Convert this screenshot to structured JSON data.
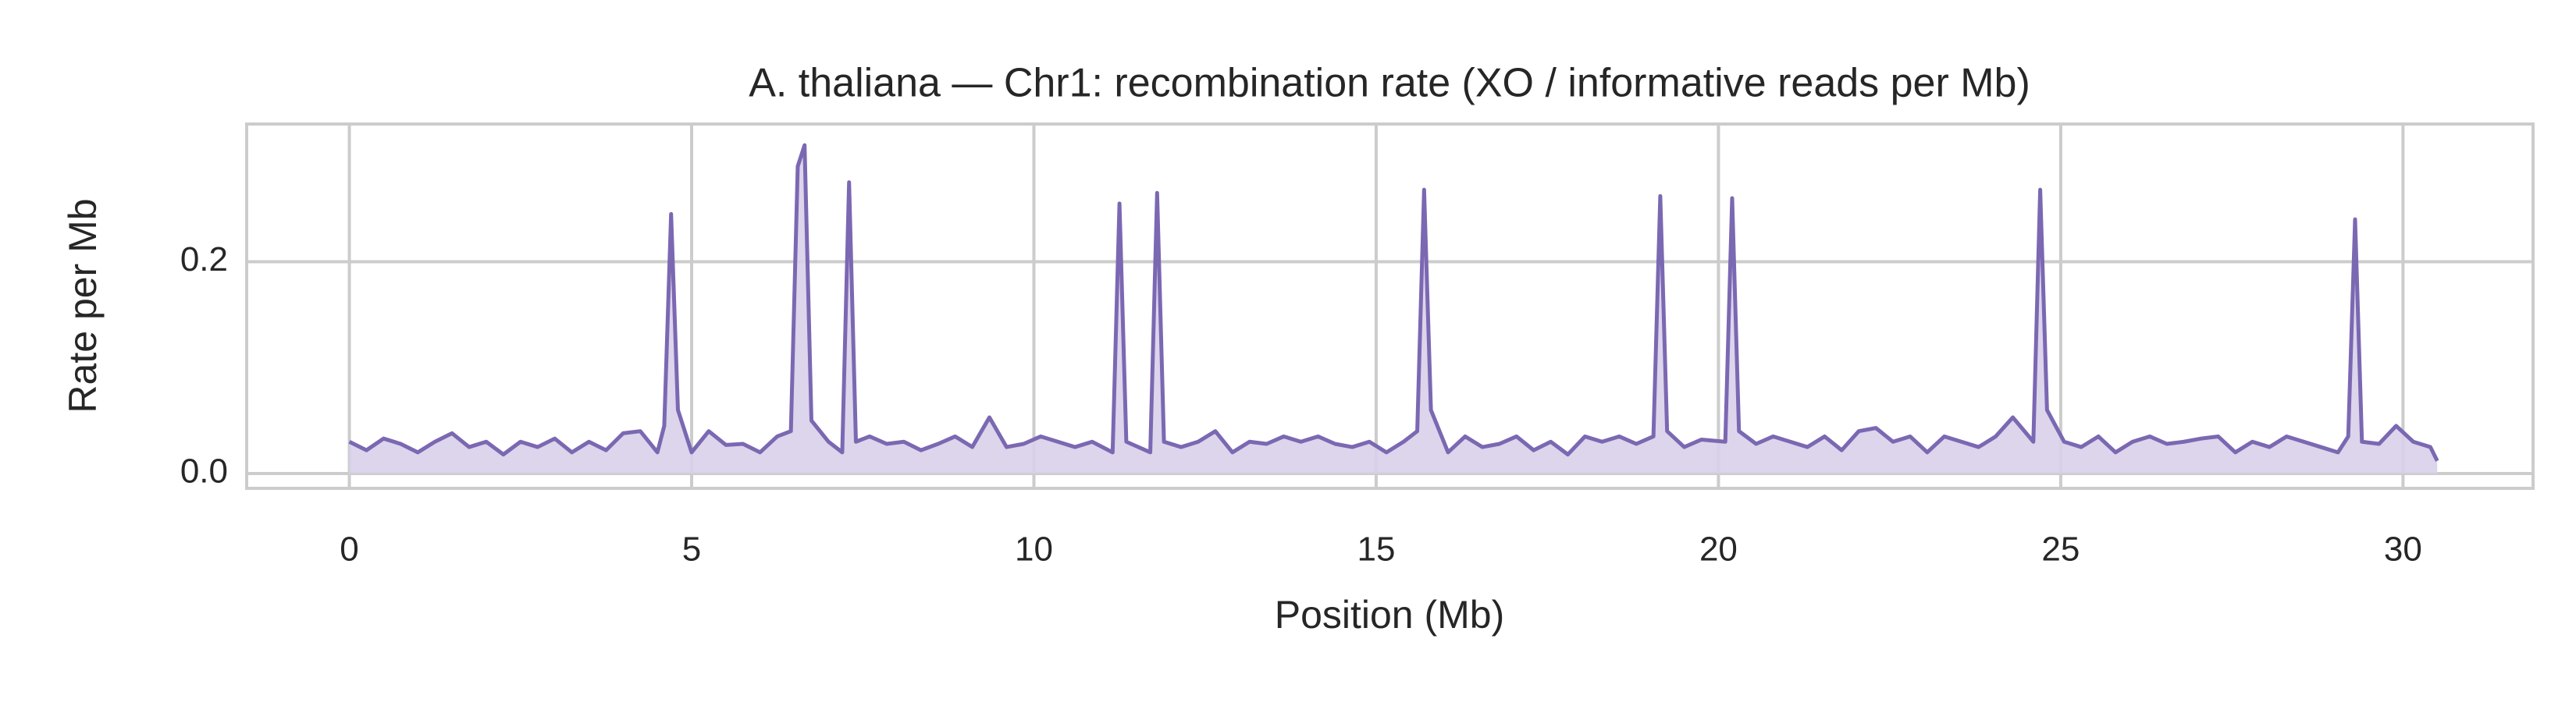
{
  "chart_data": {
    "type": "line",
    "title": "A. thaliana — Chr1: recombination rate (XO / informative reads per Mb)",
    "x_label": "Position (Mb)",
    "y_label": "Rate per Mb",
    "x": [
      0,
      0.25,
      0.5,
      0.75,
      1,
      1.25,
      1.5,
      1.75,
      2,
      2.25,
      2.5,
      2.75,
      3,
      3.25,
      3.5,
      3.75,
      4,
      4.25,
      4.5,
      4.6,
      4.7,
      4.8,
      5,
      5.25,
      5.5,
      5.75,
      6,
      6.25,
      6.45,
      6.55,
      6.65,
      6.75,
      7,
      7.2,
      7.3,
      7.4,
      7.6,
      7.85,
      8.1,
      8.35,
      8.6,
      8.85,
      9.1,
      9.35,
      9.6,
      9.85,
      10.1,
      10.35,
      10.6,
      10.85,
      11.15,
      11.25,
      11.35,
      11.7,
      11.8,
      11.9,
      12.15,
      12.4,
      12.65,
      12.9,
      13.15,
      13.4,
      13.65,
      13.9,
      14.15,
      14.4,
      14.65,
      14.9,
      15.15,
      15.4,
      15.6,
      15.7,
      15.8,
      16.05,
      16.3,
      16.55,
      16.8,
      17.05,
      17.3,
      17.55,
      17.8,
      18.05,
      18.3,
      18.55,
      18.8,
      19.05,
      19.15,
      19.25,
      19.5,
      19.75,
      20.1,
      20.2,
      20.3,
      20.55,
      20.8,
      21.05,
      21.3,
      21.55,
      21.8,
      22.05,
      22.3,
      22.55,
      22.8,
      23.05,
      23.3,
      23.55,
      23.8,
      24.05,
      24.3,
      24.6,
      24.7,
      24.8,
      25.05,
      25.3,
      25.55,
      25.8,
      26.05,
      26.3,
      26.55,
      26.8,
      27.05,
      27.3,
      27.55,
      27.8,
      28.05,
      28.3,
      28.55,
      28.8,
      29.05,
      29.2,
      29.3,
      29.4,
      29.65,
      29.9,
      30.15,
      30.4,
      30.5
    ],
    "series": [
      {
        "color": "#7b68b2",
        "fill": "#d8d0ea",
        "values": [
          0.03,
          0.022,
          0.033,
          0.028,
          0.02,
          0.03,
          0.038,
          0.025,
          0.03,
          0.018,
          0.03,
          0.025,
          0.033,
          0.02,
          0.03,
          0.022,
          0.038,
          0.04,
          0.02,
          0.045,
          0.245,
          0.06,
          0.02,
          0.04,
          0.027,
          0.028,
          0.02,
          0.035,
          0.04,
          0.29,
          0.31,
          0.05,
          0.03,
          0.02,
          0.275,
          0.03,
          0.035,
          0.028,
          0.03,
          0.022,
          0.028,
          0.035,
          0.025,
          0.053,
          0.025,
          0.028,
          0.035,
          0.03,
          0.025,
          0.03,
          0.02,
          0.255,
          0.03,
          0.02,
          0.265,
          0.03,
          0.025,
          0.03,
          0.04,
          0.02,
          0.03,
          0.028,
          0.035,
          0.03,
          0.035,
          0.028,
          0.025,
          0.03,
          0.02,
          0.03,
          0.04,
          0.268,
          0.06,
          0.02,
          0.035,
          0.025,
          0.028,
          0.035,
          0.022,
          0.03,
          0.018,
          0.035,
          0.03,
          0.035,
          0.028,
          0.035,
          0.262,
          0.04,
          0.025,
          0.032,
          0.03,
          0.26,
          0.04,
          0.028,
          0.035,
          0.03,
          0.025,
          0.035,
          0.022,
          0.04,
          0.043,
          0.03,
          0.035,
          0.02,
          0.035,
          0.03,
          0.025,
          0.035,
          0.053,
          0.03,
          0.268,
          0.06,
          0.03,
          0.025,
          0.035,
          0.02,
          0.03,
          0.035,
          0.028,
          0.03,
          0.033,
          0.035,
          0.02,
          0.03,
          0.025,
          0.035,
          0.03,
          0.025,
          0.02,
          0.035,
          0.24,
          0.03,
          0.028,
          0.045,
          0.03,
          0.025,
          0.012
        ]
      }
    ],
    "xlim": [
      -1.5,
      31.9
    ],
    "ylim": [
      -0.014,
      0.33
    ],
    "xticks": [
      0,
      5,
      10,
      15,
      20,
      25,
      30
    ],
    "yticks": [
      {
        "value": 0,
        "label": "0.0"
      },
      0.2
    ],
    "grid": true
  }
}
